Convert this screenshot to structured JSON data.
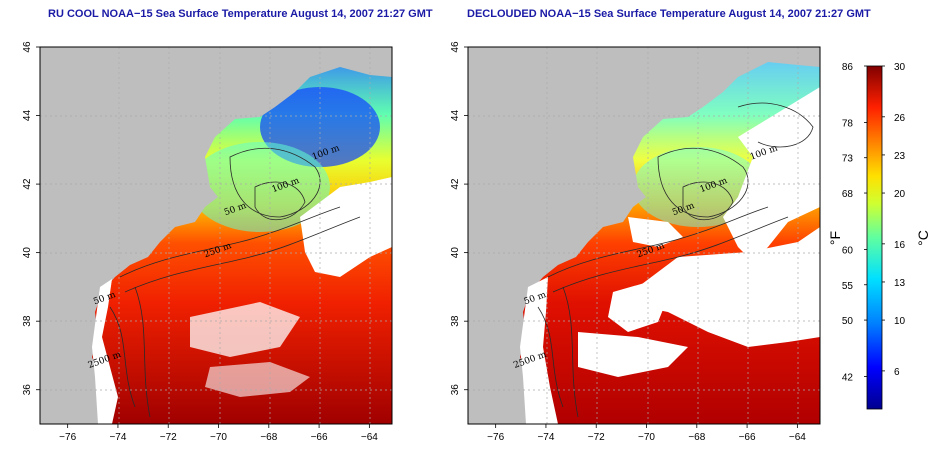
{
  "panels": [
    {
      "id": "left",
      "title": "RU COOL NOAA−15 Sea Surface Temperature August 14, 2007 21:27 GMT",
      "variant": "full"
    },
    {
      "id": "right",
      "title": "DECLOUDED NOAA−15 Sea Surface Temperature August 14, 2007 21:27 GMT",
      "variant": "declouded"
    }
  ],
  "axes": {
    "lon_ticks": [
      "−76",
      "−74",
      "−72",
      "−70",
      "−68",
      "−66",
      "−64"
    ],
    "lon_values": [
      -76,
      -74,
      -72,
      -70,
      -68,
      -66,
      -64
    ],
    "lat_ticks": [
      "36",
      "38",
      "40",
      "42",
      "44",
      "46"
    ],
    "lat_values": [
      36,
      38,
      40,
      42,
      44,
      46
    ],
    "lon_range": [
      -77.1,
      -63.1
    ],
    "lat_range": [
      35.0,
      46.0
    ]
  },
  "contour_labels": [
    {
      "text": "100 m",
      "lon": -65.7,
      "lat": 42.85,
      "panel": "left"
    },
    {
      "text": "100 m",
      "lon": -67.3,
      "lat": 41.9,
      "panel": "left"
    },
    {
      "text": "50 m",
      "lon": -69.3,
      "lat": 41.2,
      "panel": "left"
    },
    {
      "text": "250 m",
      "lon": -70.0,
      "lat": 40.0,
      "panel": "left"
    },
    {
      "text": "50 m",
      "lon": -74.5,
      "lat": 38.6,
      "panel": "left"
    },
    {
      "text": "2500 m",
      "lon": -74.5,
      "lat": 36.8,
      "panel": "left"
    },
    {
      "text": "100 m",
      "lon": -65.3,
      "lat": 42.85,
      "panel": "right"
    },
    {
      "text": "100 m",
      "lon": -67.3,
      "lat": 41.9,
      "panel": "right"
    },
    {
      "text": "50 m",
      "lon": -68.5,
      "lat": 41.2,
      "panel": "right"
    },
    {
      "text": "250 m",
      "lon": -69.8,
      "lat": 40.0,
      "panel": "right"
    },
    {
      "text": "50 m",
      "lon": -74.4,
      "lat": 38.6,
      "panel": "right"
    },
    {
      "text": "2500 m",
      "lon": -74.6,
      "lat": 36.8,
      "panel": "right"
    }
  ],
  "colorbar": {
    "fahrenheit_ticks": [
      "86",
      "78",
      "73",
      "68",
      "60",
      "55",
      "50",
      "42"
    ],
    "celsius_ticks": [
      "30",
      "26",
      "23",
      "20",
      "16",
      "13",
      "10",
      "6"
    ],
    "celsius_values": [
      30,
      26,
      23,
      20,
      16,
      13,
      10,
      6
    ],
    "fahrenheit_celsius_values": [
      30,
      25.56,
      22.78,
      20,
      15.56,
      12.78,
      10,
      5.56
    ],
    "range_c": [
      3,
      30
    ],
    "fahrenheit_label": "°F",
    "celsius_label": "°C"
  },
  "colors": {
    "land": "#bebebe",
    "cloud": "#ffffff",
    "title": "#1a1aa6",
    "contour": "#2a2a2a",
    "grid": "#ababab"
  }
}
